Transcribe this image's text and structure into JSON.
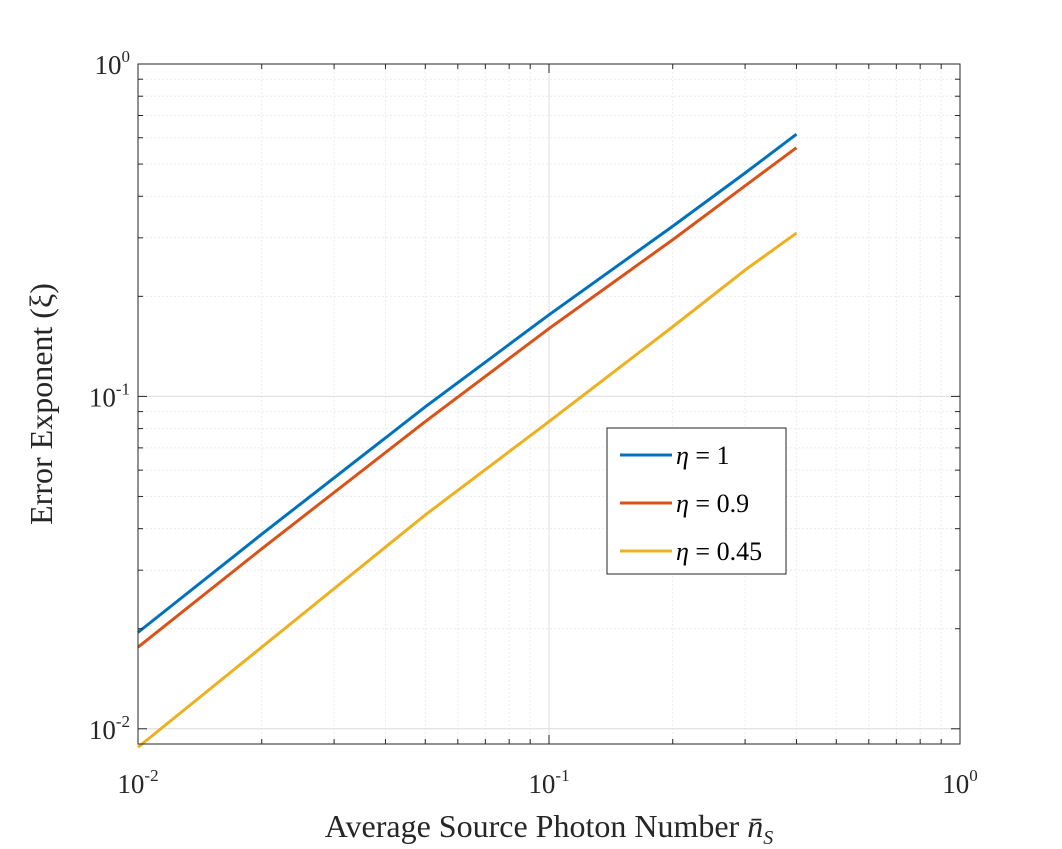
{
  "chart_data": {
    "type": "line",
    "scale": {
      "x": "log",
      "y": "log"
    },
    "xlim": [
      0.01,
      1
    ],
    "ylim": [
      0.009,
      1
    ],
    "xticks": [
      {
        "value": 0.01,
        "base": "10",
        "exp": "-2"
      },
      {
        "value": 0.1,
        "base": "10",
        "exp": "-1"
      },
      {
        "value": 1,
        "base": "10",
        "exp": "0"
      }
    ],
    "yticks": [
      {
        "value": 0.01,
        "base": "10",
        "exp": "-2"
      },
      {
        "value": 0.1,
        "base": "10",
        "exp": "-1"
      },
      {
        "value": 1,
        "base": "10",
        "exp": "0"
      }
    ],
    "xlabel": "Average Source Photon Number",
    "xlabel_symbol": "n̄",
    "xlabel_sub": "S",
    "ylabel": "Error Exponent (ξ)",
    "grid": true,
    "minor_grid": true,
    "legend_position": "center-right",
    "series": [
      {
        "name": "η = 1",
        "legend_symbol": "η",
        "legend_value": " = 1",
        "color": "#0072BD",
        "x": [
          0.01,
          0.02,
          0.05,
          0.1,
          0.2,
          0.3,
          0.4
        ],
        "y": [
          0.0195,
          0.0385,
          0.093,
          0.176,
          0.325,
          0.47,
          0.615
        ]
      },
      {
        "name": "η = 0.9",
        "legend_symbol": "η",
        "legend_value": " = 0.9",
        "color": "#D95319",
        "x": [
          0.01,
          0.02,
          0.05,
          0.1,
          0.2,
          0.3,
          0.4
        ],
        "y": [
          0.0176,
          0.0348,
          0.084,
          0.16,
          0.296,
          0.43,
          0.56
        ]
      },
      {
        "name": "η = 0.45",
        "legend_symbol": "η",
        "legend_value": " = 0.45",
        "color": "#EDB120",
        "x": [
          0.01,
          0.02,
          0.05,
          0.1,
          0.2,
          0.3,
          0.4
        ],
        "y": [
          0.0088,
          0.0176,
          0.044,
          0.084,
          0.162,
          0.24,
          0.31
        ]
      }
    ]
  }
}
